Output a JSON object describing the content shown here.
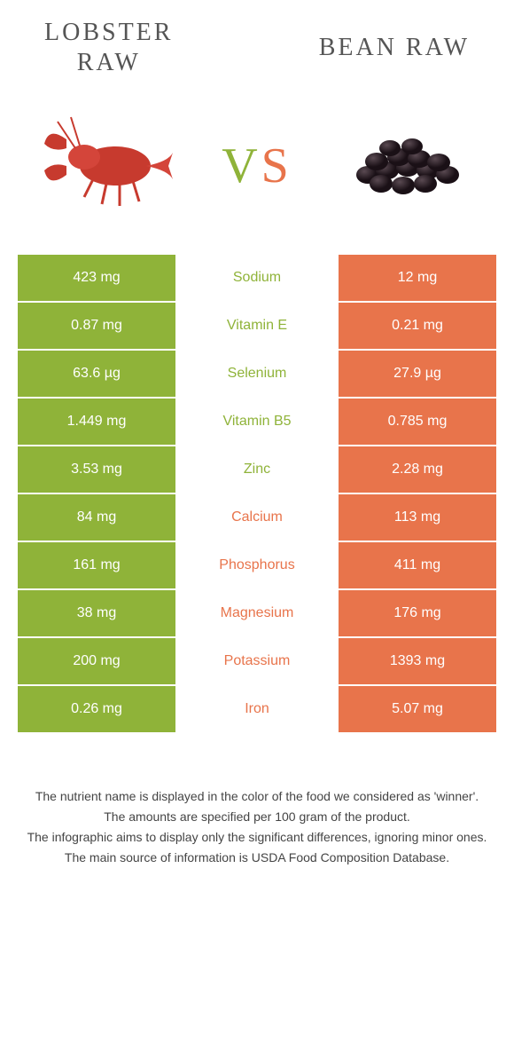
{
  "header": {
    "left_title_line1": "LOBSTER",
    "left_title_line2": "RAW",
    "right_title": "BEAN RAW",
    "vs_v": "V",
    "vs_s": "S"
  },
  "colors": {
    "green": "#8fb339",
    "orange": "#e8744b",
    "white": "#ffffff",
    "text": "#444444"
  },
  "rows": [
    {
      "left": "423 mg",
      "label": "Sodium",
      "right": "12 mg",
      "winner": "left"
    },
    {
      "left": "0.87 mg",
      "label": "Vitamin E",
      "right": "0.21 mg",
      "winner": "left"
    },
    {
      "left": "63.6 µg",
      "label": "Selenium",
      "right": "27.9 µg",
      "winner": "left"
    },
    {
      "left": "1.449 mg",
      "label": "Vitamin B5",
      "right": "0.785 mg",
      "winner": "left"
    },
    {
      "left": "3.53 mg",
      "label": "Zinc",
      "right": "2.28 mg",
      "winner": "left"
    },
    {
      "left": "84 mg",
      "label": "Calcium",
      "right": "113 mg",
      "winner": "right"
    },
    {
      "left": "161 mg",
      "label": "Phosphorus",
      "right": "411 mg",
      "winner": "right"
    },
    {
      "left": "38 mg",
      "label": "Magnesium",
      "right": "176 mg",
      "winner": "right"
    },
    {
      "left": "200 mg",
      "label": "Potassium",
      "right": "1393 mg",
      "winner": "right"
    },
    {
      "left": "0.26 mg",
      "label": "Iron",
      "right": "5.07 mg",
      "winner": "right"
    }
  ],
  "footer": {
    "line1": "The nutrient name is displayed in the color of the food we considered as 'winner'.",
    "line2": "The amounts are specified per 100 gram of the product.",
    "line3": "The infographic aims to display only the significant differences, ignoring minor ones.",
    "line4": "The main source of information is USDA Food Composition Database."
  }
}
